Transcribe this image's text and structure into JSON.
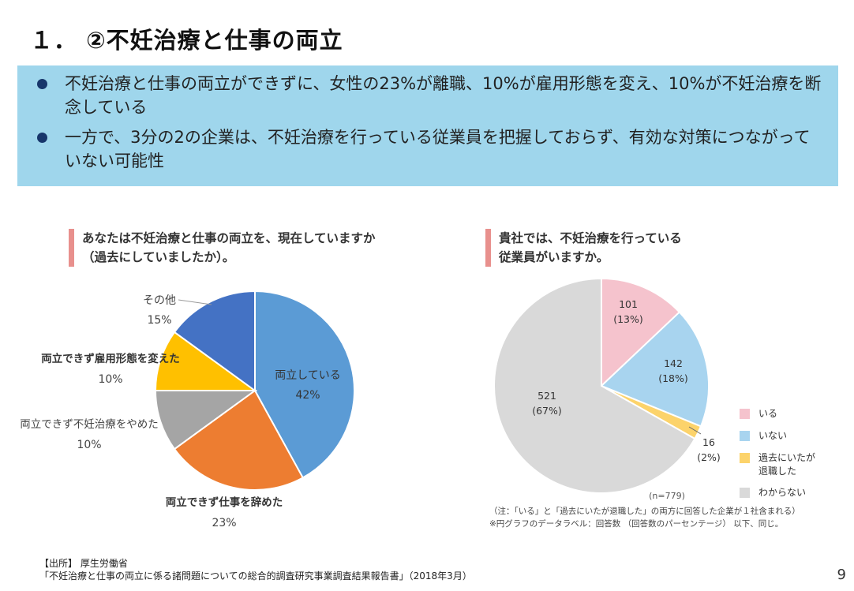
{
  "title": "１． ②不妊治療と仕事の両立",
  "summary": {
    "bullets": [
      "不妊治療と仕事の両立ができずに、女性の23%が離職、10%が雇用形態を変え、10%が不妊治療を断念している",
      "一方で、3分の2の企業は、不妊治療を行っている従業員を把握しておらず、有効な対策につながっていない可能性"
    ]
  },
  "chart_data": [
    {
      "type": "pie",
      "title": "あなたは不妊治療と仕事の両立を、現在していますか\n（過去にしていましたか）。",
      "slices": [
        {
          "label": "両立している",
          "value": 42,
          "pct": "42%",
          "color": "#5b9bd5"
        },
        {
          "label": "両立できず仕事を辞めた",
          "value": 23,
          "pct": "23%",
          "color": "#ed7d31"
        },
        {
          "label": "両立できず不妊治療をやめた",
          "value": 10,
          "pct": "10%",
          "color": "#a5a5a5"
        },
        {
          "label": "両立できず雇用形態を変えた",
          "value": 10,
          "pct": "10%",
          "color": "#ffc000"
        },
        {
          "label": "その他",
          "value": 15,
          "pct": "15%",
          "color": "#4472c4"
        }
      ]
    },
    {
      "type": "pie",
      "title": "貴社では、不妊治療を行っている\n従業員がいますか。",
      "n_label": "(n=779)",
      "slices": [
        {
          "label": "いる",
          "value": 101,
          "pct": "(13%)",
          "color": "#f5c3cd"
        },
        {
          "label": "いない",
          "value": 142,
          "pct": "(18%)",
          "color": "#a8d4ef"
        },
        {
          "label": "過去にいたが\n退職した",
          "value": 16,
          "pct": "(2%)",
          "color": "#fcd36b"
        },
        {
          "label": "わからない",
          "value": 521,
          "pct": "(67%)",
          "color": "#d9d9d9"
        }
      ]
    }
  ],
  "notes": {
    "line1": "（注：「いる」と「過去にいたが退職した」の両方に回答した企業が１社含まれる）",
    "line2": "※円グラフのデータラベル：回答数 （回答数のパーセンテージ） 以下、同じ。"
  },
  "source": {
    "line1": "【出所】 厚生労働省",
    "line2": "「不妊治療と仕事の両立に係る諸問題についての総合的調査研究事業調査結果報告書」（2018年3月）"
  },
  "page_number": "9"
}
